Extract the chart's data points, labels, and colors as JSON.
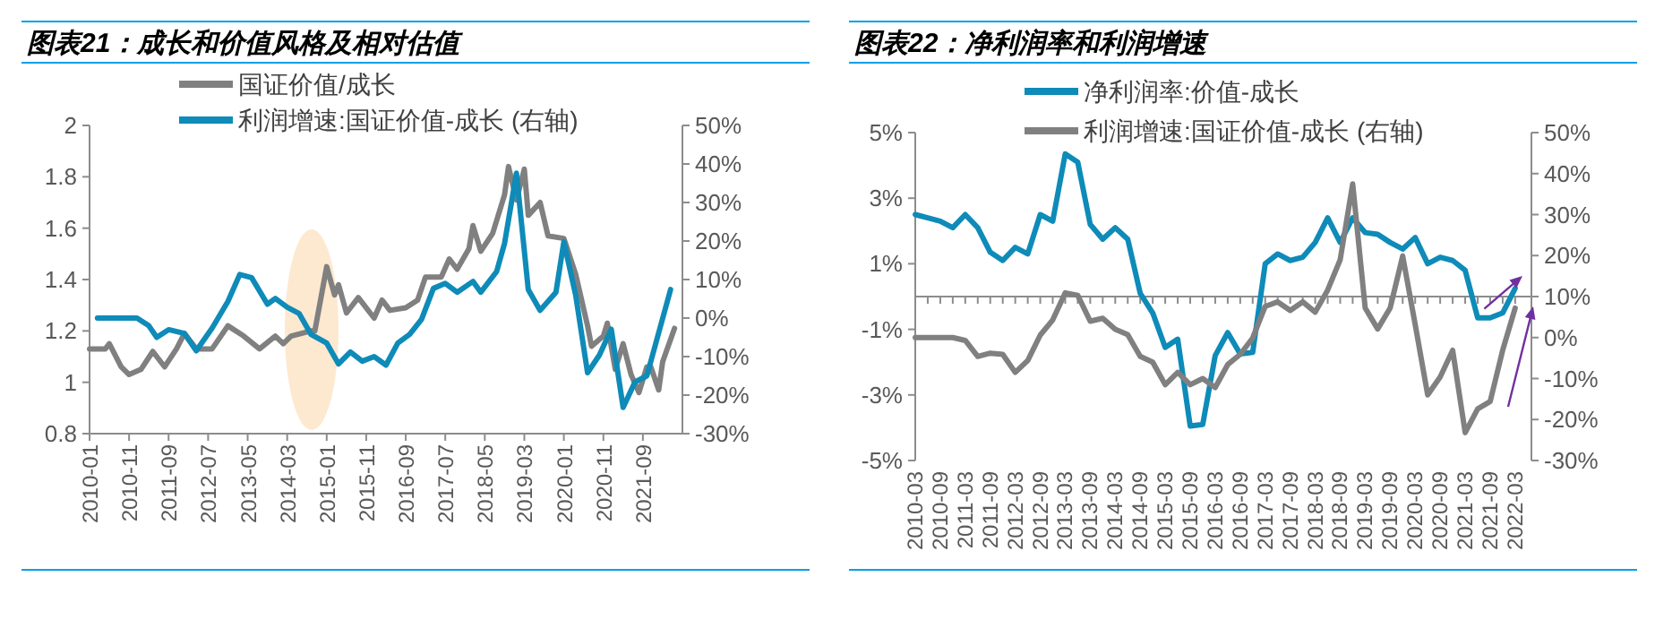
{
  "chart_data": [
    {
      "type": "line",
      "title": "图表21：成长和价值风格及相对估值",
      "legend": "top",
      "xlim": [
        "2010-01",
        "2022-07"
      ],
      "xticks": [
        "2010-01",
        "2010-11",
        "2011-09",
        "2012-07",
        "2013-05",
        "2014-03",
        "2015-01",
        "2015-11",
        "2016-09",
        "2017-07",
        "2018-05",
        "2019-03",
        "2020-01",
        "2020-11",
        "2021-09"
      ],
      "ylim": [
        0.8,
        2
      ],
      "yticks": [
        0.8,
        1,
        1.2,
        1.4,
        1.6,
        1.8,
        2
      ],
      "y2lim": [
        -30,
        50
      ],
      "y2ticks": [
        {
          "value": -30,
          "label": "-30%"
        },
        {
          "value": -20,
          "label": "-20%"
        },
        {
          "value": -10,
          "label": "-10%"
        },
        {
          "value": 0,
          "label": "0%"
        },
        {
          "value": 10,
          "label": "10%"
        },
        {
          "value": 20,
          "label": "20%"
        },
        {
          "value": 30,
          "label": "30%"
        },
        {
          "value": 40,
          "label": "40%"
        },
        {
          "value": 50,
          "label": "50%"
        }
      ],
      "series": [
        {
          "name": "国证价值/成长",
          "color": "#808080",
          "x": [
            "2010-01",
            "2010-05",
            "2010-06",
            "2010-09",
            "2010-11",
            "2011-02",
            "2011-05",
            "2011-08",
            "2011-11",
            "2012-01",
            "2012-04",
            "2012-08",
            "2012-12",
            "2013-04",
            "2013-08",
            "2013-12",
            "2014-02",
            "2014-04",
            "2014-09",
            "2014-10",
            "2015-01",
            "2015-03",
            "2015-04",
            "2015-06",
            "2015-09",
            "2016-01",
            "2016-03",
            "2016-05",
            "2016-09",
            "2016-12",
            "2017-02",
            "2017-06",
            "2017-08",
            "2017-10",
            "2018-01",
            "2018-02",
            "2018-04",
            "2018-07",
            "2018-10",
            "2018-11",
            "2019-01",
            "2019-03",
            "2019-04",
            "2019-07",
            "2019-09",
            "2020-01",
            "2020-04",
            "2020-07",
            "2020-08",
            "2020-11",
            "2020-12",
            "2021-02",
            "2021-04",
            "2021-06",
            "2021-08",
            "2021-10",
            "2021-11",
            "2022-01",
            "2022-02",
            "2022-05"
          ],
          "values": [
            1.13,
            1.13,
            1.15,
            1.06,
            1.03,
            1.05,
            1.12,
            1.06,
            1.13,
            1.19,
            1.13,
            1.13,
            1.22,
            1.18,
            1.13,
            1.18,
            1.15,
            1.18,
            1.2,
            1.2,
            1.45,
            1.34,
            1.38,
            1.27,
            1.33,
            1.25,
            1.32,
            1.28,
            1.29,
            1.32,
            1.41,
            1.41,
            1.48,
            1.44,
            1.52,
            1.61,
            1.51,
            1.58,
            1.73,
            1.84,
            1.71,
            1.83,
            1.65,
            1.7,
            1.57,
            1.56,
            1.42,
            1.22,
            1.14,
            1.18,
            1.23,
            1.05,
            1.15,
            1.03,
            0.96,
            1.06,
            1.06,
            0.97,
            1.08,
            1.21
          ]
        },
        {
          "name": "利润增速:国证价值-成长 (右轴)",
          "color": "#0e8bb8",
          "axis": "y2",
          "x": [
            "2010-03",
            "2011-01",
            "2011-04",
            "2011-06",
            "2011-09",
            "2012-01",
            "2012-04",
            "2012-08",
            "2012-12",
            "2013-03",
            "2013-06",
            "2013-10",
            "2013-12",
            "2014-03",
            "2014-06",
            "2014-09",
            "2015-01",
            "2015-04",
            "2015-07",
            "2015-10",
            "2016-01",
            "2016-04",
            "2016-07",
            "2016-10",
            "2017-01",
            "2017-04",
            "2017-07",
            "2017-10",
            "2018-02",
            "2018-04",
            "2018-08",
            "2018-10",
            "2019-01",
            "2019-04",
            "2019-07",
            "2019-11",
            "2020-01",
            "2020-04",
            "2020-07",
            "2020-10",
            "2021-01",
            "2021-04",
            "2021-07",
            "2021-10",
            "2022-04"
          ],
          "values": [
            0,
            0,
            -2,
            -5,
            -3,
            -4,
            -8.5,
            -2.6,
            4.3,
            11.3,
            10.5,
            3.6,
            5.1,
            2.8,
            1.2,
            -4.2,
            -6.5,
            -11.9,
            -8.8,
            -11.2,
            -10,
            -12.2,
            -6.5,
            -4.2,
            -0.3,
            7.7,
            9,
            6.7,
            9.5,
            6.7,
            12.1,
            19.4,
            37.6,
            7.4,
            2,
            6.7,
            19.8,
            5.9,
            -14.2,
            -9.6,
            -2.9,
            -23.2,
            -16.6,
            -15,
            7.4
          ]
        }
      ]
    },
    {
      "type": "line",
      "title": "图表22：净利润率和利润增速",
      "legend": "top",
      "categories": [
        "2010-03",
        null,
        "2010-09",
        null,
        "2011-03",
        null,
        "2011-09",
        null,
        "2012-03",
        null,
        "2012-09",
        null,
        "2013-03",
        null,
        "2013-09",
        null,
        "2014-03",
        null,
        "2014-09",
        null,
        "2015-03",
        null,
        "2015-09",
        null,
        "2016-03",
        null,
        "2016-09",
        null,
        "2017-03",
        null,
        "2017-09",
        null,
        "2018-03",
        null,
        "2018-09",
        null,
        "2019-03",
        null,
        "2019-09",
        null,
        "2020-03",
        null,
        "2020-09",
        null,
        "2021-03",
        null,
        "2021-09",
        null,
        "2022-03"
      ],
      "ylim": [
        -5,
        5
      ],
      "yticks": [
        {
          "value": -5,
          "label": "-5%"
        },
        {
          "value": -3,
          "label": "-3%"
        },
        {
          "value": -1,
          "label": "-1%"
        },
        {
          "value": 1,
          "label": "1%"
        },
        {
          "value": 3,
          "label": "3%"
        },
        {
          "value": 5,
          "label": "5%"
        }
      ],
      "y2lim": [
        -30,
        50
      ],
      "y2ticks": [
        {
          "value": -30,
          "label": "-30%"
        },
        {
          "value": -20,
          "label": "-20%"
        },
        {
          "value": -10,
          "label": "-10%"
        },
        {
          "value": 0,
          "label": "0%"
        },
        {
          "value": 10,
          "label": "10%"
        },
        {
          "value": 20,
          "label": "20%"
        },
        {
          "value": 30,
          "label": "30%"
        },
        {
          "value": 40,
          "label": "40%"
        },
        {
          "value": 50,
          "label": "50%"
        }
      ],
      "series": [
        {
          "name": "净利润率:价值-成长",
          "color": "#0e8bb8",
          "values": [
            2.5,
            2.4,
            2.3,
            2.1,
            2.5,
            2.1,
            1.35,
            1.1,
            1.5,
            1.3,
            2.5,
            2.3,
            4.35,
            4.1,
            2.2,
            1.75,
            2.1,
            1.75,
            0.1,
            -0.5,
            -1.55,
            -1.3,
            -3.95,
            -3.9,
            -1.8,
            -1.1,
            -1.75,
            -1.7,
            1,
            1.3,
            1.1,
            1.2,
            1.65,
            2.4,
            1.65,
            2.4,
            1.95,
            1.9,
            1.65,
            1.45,
            1.8,
            1,
            1.2,
            1.1,
            0.8,
            -0.65,
            -0.65,
            -0.5,
            0.25
          ]
        },
        {
          "name": "利润增速:国证价值-成长 (右轴)",
          "color": "#808080",
          "axis": "y2",
          "values": [
            0,
            0,
            0,
            0,
            -0.7,
            -4.6,
            -3.8,
            -4.1,
            -8.5,
            -5.6,
            0.6,
            4.3,
            10.9,
            10.3,
            4,
            4.7,
            2,
            0.7,
            -4.6,
            -6,
            -11.5,
            -8.5,
            -11.5,
            -10,
            -12.2,
            -6.6,
            -4.1,
            -0.1,
            7.6,
            8.7,
            6.6,
            8.7,
            6.2,
            11.6,
            19,
            37.5,
            7.2,
            2.1,
            7.2,
            19.9,
            3.2,
            -14,
            -9.6,
            -3.1,
            -23.2,
            -17.4,
            -15.6,
            -3.1,
            7.2
          ]
        }
      ]
    }
  ]
}
